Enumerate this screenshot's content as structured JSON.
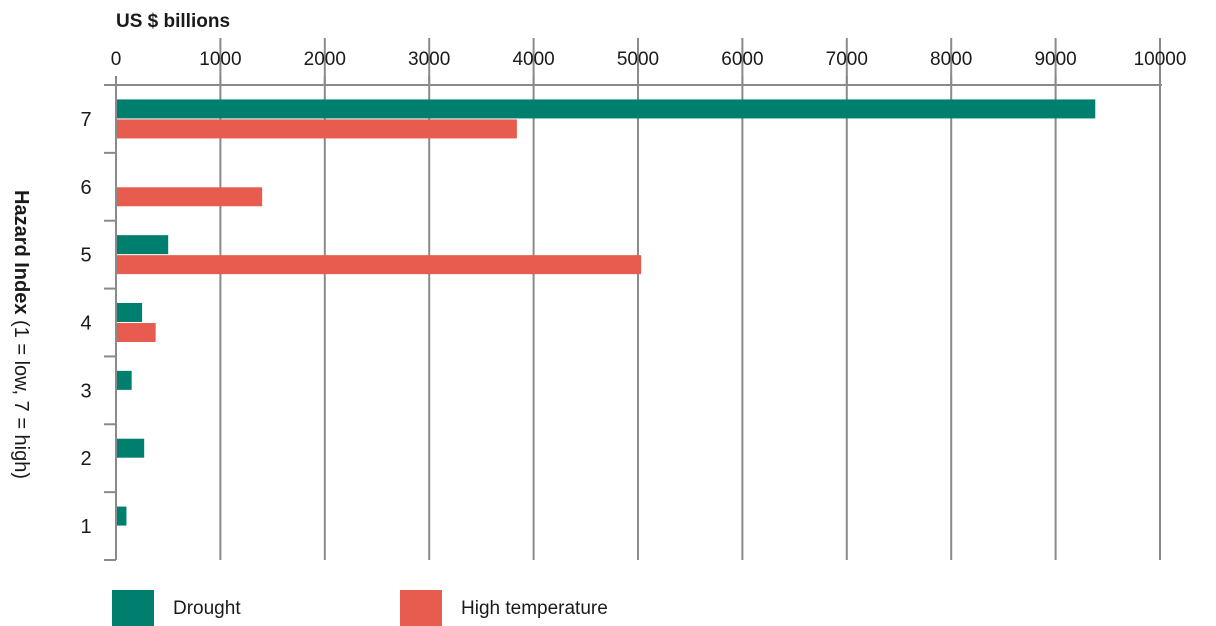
{
  "chart_data": {
    "type": "bar",
    "orientation": "horizontal",
    "unit_label": "US $ billions",
    "ylabel_bold": "Hazard Index",
    "ylabel_rest": " (1 = low, 7 = high)",
    "categories": [
      "7",
      "6",
      "5",
      "4",
      "3",
      "2",
      "1"
    ],
    "xlim": [
      0,
      10000
    ],
    "xticks": [
      "0",
      "1000",
      "2000",
      "3000",
      "4000",
      "5000",
      "6000",
      "7000",
      "8000",
      "9000",
      "10000"
    ],
    "grid": true,
    "legend_position": "bottom-left",
    "series": [
      {
        "name": "Drought",
        "color": "#007f6e",
        "values": [
          9380,
          0,
          500,
          250,
          150,
          270,
          100
        ]
      },
      {
        "name": "High temperature",
        "color": "#e85c4f",
        "values": [
          3840,
          1400,
          5030,
          380,
          0,
          0,
          0
        ]
      }
    ]
  }
}
